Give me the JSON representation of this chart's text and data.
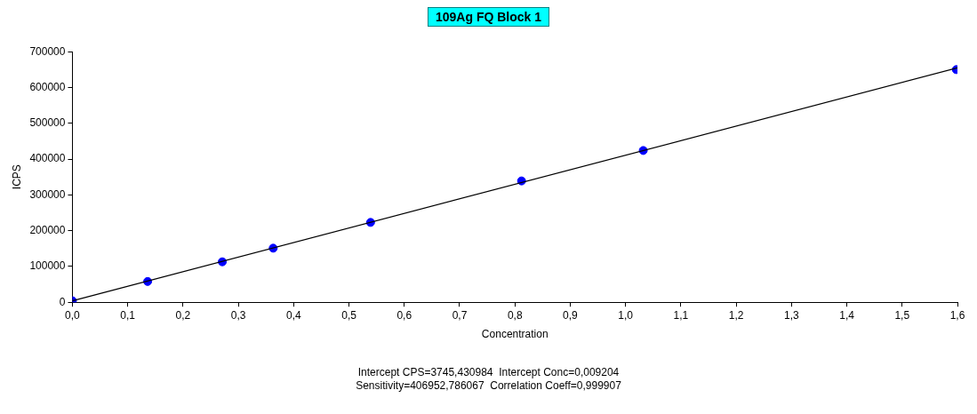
{
  "chart_data": {
    "type": "scatter",
    "title": "109Ag FQ Block 1",
    "xlabel": "Concentration",
    "ylabel": "ICPS",
    "x": [
      0,
      0.136,
      0.271,
      0.363,
      0.539,
      0.812,
      1.032,
      1.598
    ],
    "series": [
      {
        "color": "#0000ff",
        "values": [
          4000,
          58000,
          113000,
          151000,
          223000,
          339000,
          424000,
          650000
        ],
        "marker": "circle"
      },
      {
        "type": "line",
        "color": "#000000",
        "x": [
          0,
          1.6
        ],
        "values": [
          4000,
          655000
        ],
        "marker": "none",
        "line_style": "solid"
      }
    ],
    "xlim": [
      0,
      1.6
    ],
    "xticks": [
      {
        "value": 0,
        "label": "0,0"
      },
      {
        "value": 0.1,
        "label": "0,1"
      },
      {
        "value": 0.2,
        "label": "0,2"
      },
      {
        "value": 0.3,
        "label": "0,3"
      },
      {
        "value": 0.4,
        "label": "0,4"
      },
      {
        "value": 0.5,
        "label": "0,5"
      },
      {
        "value": 0.6,
        "label": "0,6"
      },
      {
        "value": 0.7,
        "label": "0,7"
      },
      {
        "value": 0.8,
        "label": "0,8"
      },
      {
        "value": 0.9,
        "label": "0,9"
      },
      {
        "value": 1.0,
        "label": "1,0"
      },
      {
        "value": 1.1,
        "label": "1,1"
      },
      {
        "value": 1.2,
        "label": "1,2"
      },
      {
        "value": 1.3,
        "label": "1,3"
      },
      {
        "value": 1.4,
        "label": "1,4"
      },
      {
        "value": 1.5,
        "label": "1,5"
      },
      {
        "value": 1.6,
        "label": "1,6"
      }
    ],
    "ylim": [
      0,
      700000
    ],
    "yticks": [
      0,
      100000,
      200000,
      300000,
      400000,
      500000,
      600000,
      700000
    ],
    "grid": false,
    "legend": false,
    "annotations": [
      "Intercept CPS=3745,430984  Intercept Conc=0,009204",
      "Sensitivity=406952,786067  Correlation Coeff=0,999907"
    ]
  }
}
